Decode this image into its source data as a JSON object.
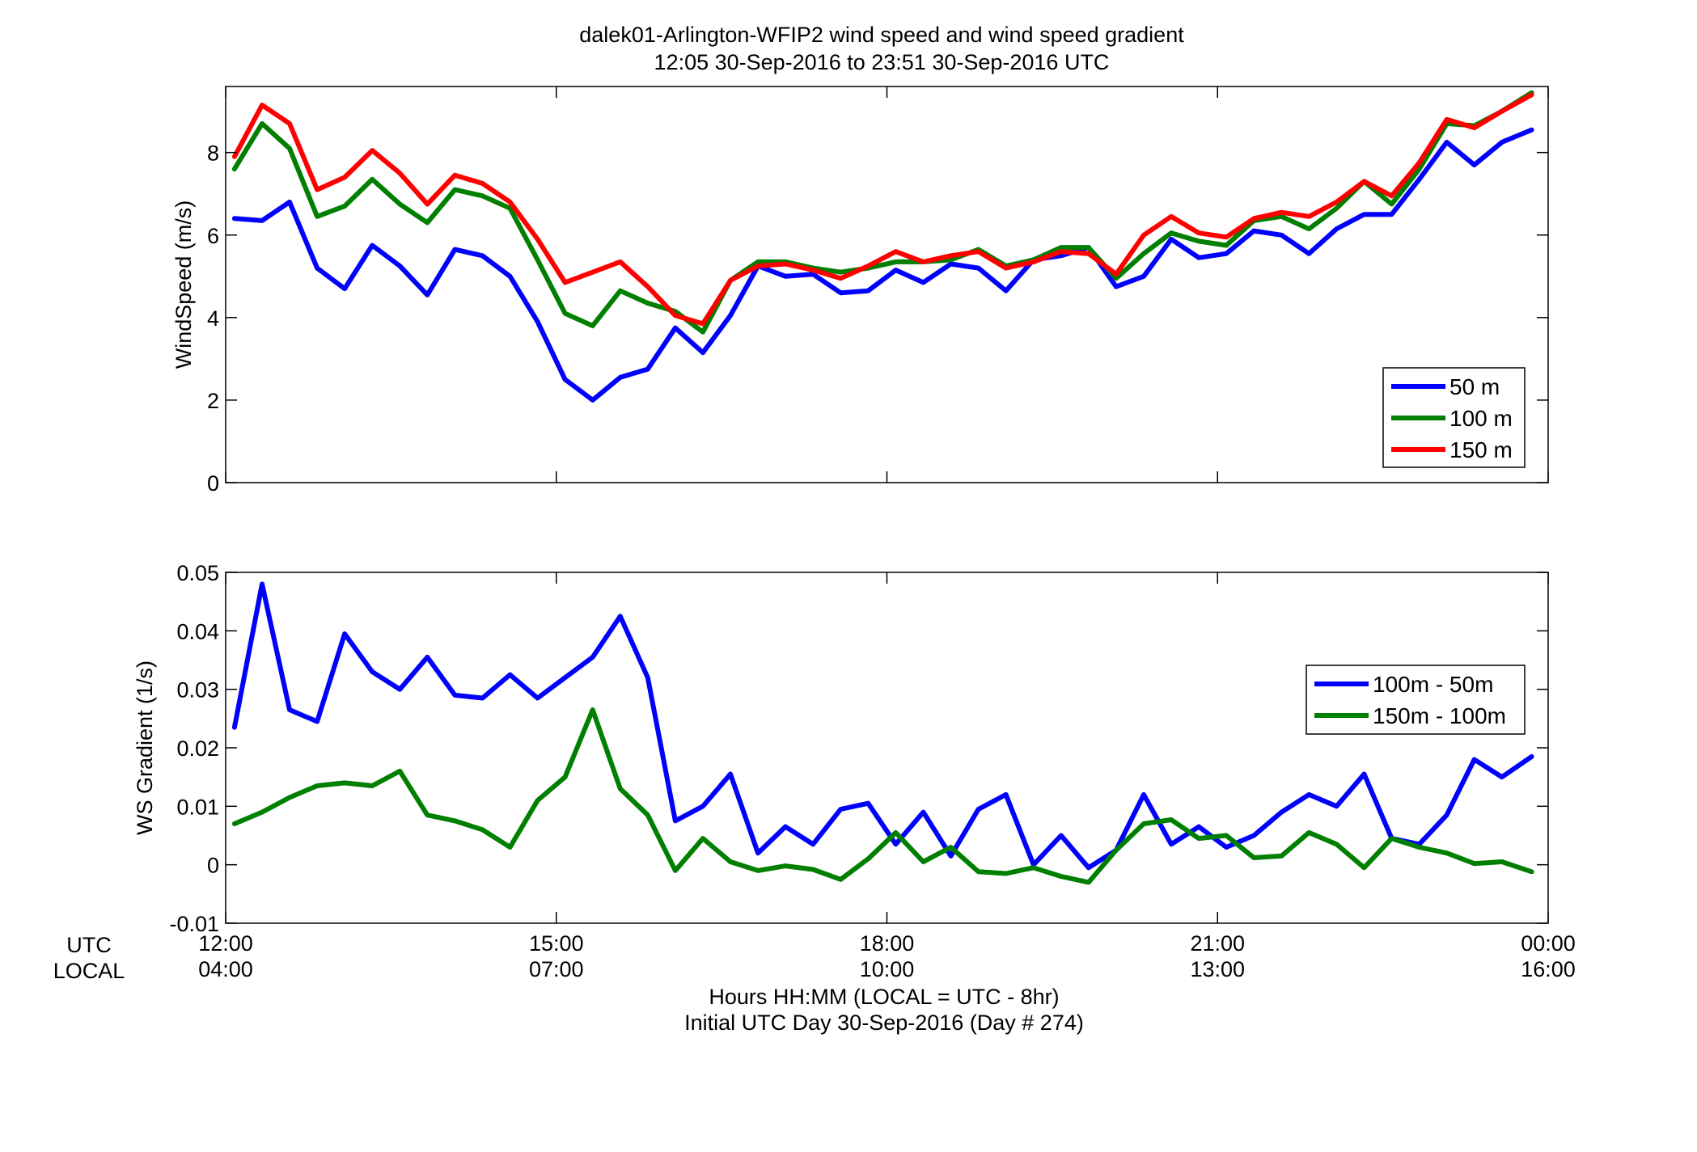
{
  "figure": {
    "title_line1": "dalek01-Arlington-WFIP2  wind speed and wind speed gradient",
    "title_line2": "12:05 30-Sep-2016 to 23:51 30-Sep-2016  UTC",
    "row_label_utc": "UTC",
    "row_label_local": "LOCAL",
    "xlabel_line1": "Hours HH:MM  (LOCAL = UTC - 8hr)",
    "xlabel_line2": "Initial UTC Day 30-Sep-2016 (Day # 274)",
    "x_ticks_utc": [
      "12:00",
      "15:00",
      "18:00",
      "21:00",
      "00:00"
    ],
    "x_ticks_local": [
      "04:00",
      "07:00",
      "10:00",
      "13:00",
      "16:00"
    ],
    "colors": {
      "blue": "#0000ff",
      "green": "#007f00",
      "red": "#ff0000"
    }
  },
  "chart_data": [
    {
      "type": "line",
      "title": "",
      "xlabel": "",
      "ylabel": "WindSpeed (m/s)",
      "xlim": [
        12.0,
        24.0
      ],
      "ylim": [
        0,
        9.6
      ],
      "yticks": [
        0,
        2,
        4,
        6,
        8
      ],
      "ytick_labels": [
        "0",
        "2",
        "4",
        "6",
        "8"
      ],
      "x_hours": [
        12.08,
        12.33,
        12.58,
        12.83,
        13.08,
        13.33,
        13.58,
        13.83,
        14.08,
        14.33,
        14.58,
        14.83,
        15.08,
        15.33,
        15.58,
        15.83,
        16.08,
        16.33,
        16.58,
        16.83,
        17.08,
        17.33,
        17.58,
        17.83,
        18.08,
        18.33,
        18.58,
        18.83,
        19.08,
        19.33,
        19.58,
        19.83,
        20.08,
        20.33,
        20.58,
        20.83,
        21.08,
        21.33,
        21.58,
        21.83,
        22.08,
        22.33,
        22.58,
        22.83,
        23.08,
        23.33,
        23.58,
        23.85
      ],
      "legend": {
        "position": "middle-right"
      },
      "series": [
        {
          "name": "50 m",
          "color": "#0000ff",
          "values": [
            6.4,
            6.35,
            6.8,
            5.2,
            4.7,
            5.75,
            5.25,
            4.55,
            5.65,
            5.5,
            5.0,
            3.9,
            2.5,
            2.0,
            2.55,
            2.75,
            3.75,
            3.15,
            4.05,
            5.25,
            5.0,
            5.05,
            4.6,
            4.65,
            5.15,
            4.85,
            5.3,
            5.2,
            4.65,
            5.4,
            5.5,
            5.7,
            4.75,
            5.0,
            5.9,
            5.45,
            5.55,
            6.1,
            6.0,
            5.55,
            6.15,
            6.5,
            6.5,
            7.35,
            8.25,
            7.7,
            8.25,
            8.55
          ]
        },
        {
          "name": "100 m",
          "color": "#007f00",
          "values": [
            7.6,
            8.7,
            8.1,
            6.45,
            6.7,
            7.35,
            6.75,
            6.3,
            7.1,
            6.95,
            6.65,
            5.4,
            4.1,
            3.8,
            4.65,
            4.35,
            4.15,
            3.65,
            4.9,
            5.35,
            5.35,
            5.2,
            5.1,
            5.2,
            5.35,
            5.35,
            5.4,
            5.65,
            5.25,
            5.4,
            5.7,
            5.7,
            4.95,
            5.55,
            6.05,
            5.85,
            5.75,
            6.35,
            6.45,
            6.15,
            6.65,
            7.3,
            6.75,
            7.6,
            8.7,
            8.65,
            9.0,
            9.45
          ]
        },
        {
          "name": "150 m",
          "color": "#ff0000",
          "values": [
            7.9,
            9.15,
            8.7,
            7.1,
            7.4,
            8.05,
            7.5,
            6.75,
            7.45,
            7.25,
            6.8,
            5.9,
            4.85,
            5.1,
            5.35,
            4.75,
            4.05,
            3.85,
            4.9,
            5.25,
            5.3,
            5.15,
            4.95,
            5.25,
            5.6,
            5.35,
            5.5,
            5.6,
            5.2,
            5.35,
            5.6,
            5.55,
            5.05,
            6.0,
            6.45,
            6.05,
            5.95,
            6.4,
            6.55,
            6.45,
            6.8,
            7.3,
            6.95,
            7.75,
            8.8,
            8.6,
            9.0,
            9.4
          ]
        }
      ]
    },
    {
      "type": "line",
      "title": "",
      "xlabel": "",
      "ylabel": "WS Gradient (1/s)",
      "xlim": [
        12.0,
        24.0
      ],
      "ylim": [
        -0.01,
        0.05
      ],
      "yticks": [
        -0.01,
        0,
        0.01,
        0.02,
        0.03,
        0.04,
        0.05
      ],
      "ytick_labels": [
        "-0.01",
        "0",
        "0.01",
        "0.02",
        "0.03",
        "0.04",
        "0.05"
      ],
      "x_hours": [
        12.08,
        12.33,
        12.58,
        12.83,
        13.08,
        13.33,
        13.58,
        13.83,
        14.08,
        14.33,
        14.58,
        14.83,
        15.08,
        15.33,
        15.58,
        15.83,
        16.08,
        16.33,
        16.58,
        16.83,
        17.08,
        17.33,
        17.58,
        17.83,
        18.08,
        18.33,
        18.58,
        18.83,
        19.08,
        19.33,
        19.58,
        19.83,
        20.08,
        20.33,
        20.58,
        20.83,
        21.08,
        21.33,
        21.58,
        21.83,
        22.08,
        22.33,
        22.58,
        22.83,
        23.08,
        23.33,
        23.58,
        23.85
      ],
      "legend": {
        "position": "top-right"
      },
      "series": [
        {
          "name": "100m - 50m",
          "color": "#0000ff",
          "values": [
            0.0235,
            0.048,
            0.0265,
            0.0245,
            0.0395,
            0.033,
            0.03,
            0.0355,
            0.029,
            0.0285,
            0.0325,
            0.0285,
            0.032,
            0.0355,
            0.0425,
            0.032,
            0.0075,
            0.01,
            0.0155,
            0.002,
            0.0065,
            0.0035,
            0.0095,
            0.0105,
            0.0035,
            0.009,
            0.0015,
            0.0095,
            0.012,
            0.0,
            0.005,
            -0.0005,
            0.0025,
            0.012,
            0.0035,
            0.0065,
            0.003,
            0.005,
            0.009,
            0.012,
            0.01,
            0.0155,
            0.0045,
            0.0035,
            0.0085,
            0.018,
            0.015,
            0.0185
          ]
        },
        {
          "name": "150m - 100m",
          "color": "#007f00",
          "values": [
            0.007,
            0.009,
            0.0115,
            0.0135,
            0.014,
            0.0135,
            0.016,
            0.0085,
            0.0075,
            0.006,
            0.003,
            0.011,
            0.015,
            0.0265,
            0.013,
            0.0085,
            -0.001,
            0.0045,
            0.0005,
            -0.001,
            -0.0002,
            -0.0008,
            -0.0025,
            0.001,
            0.0055,
            0.0005,
            0.003,
            -0.0012,
            -0.0015,
            -0.0005,
            -0.002,
            -0.003,
            0.0025,
            0.007,
            0.0077,
            0.0045,
            0.005,
            0.0012,
            0.0015,
            0.0055,
            0.0035,
            -0.0005,
            0.0045,
            0.003,
            0.002,
            0.0002,
            0.0005,
            -0.0012
          ]
        }
      ]
    }
  ]
}
